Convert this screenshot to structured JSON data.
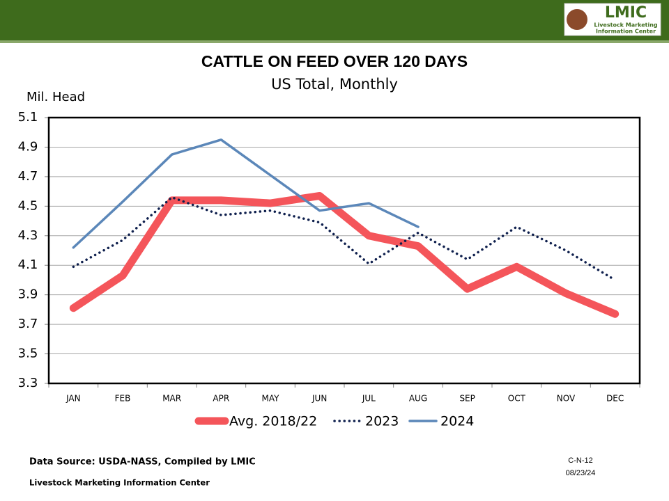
{
  "header": {
    "logo_title": "LMIC",
    "logo_line1": "Livestock Marketing",
    "logo_line2": "Information Center"
  },
  "chart_data": {
    "type": "line",
    "title": "CATTLE ON FEED OVER 120 DAYS",
    "subtitle": "US Total, Monthly",
    "y_label": "Mil. Head",
    "categories": [
      "JAN",
      "FEB",
      "MAR",
      "APR",
      "MAY",
      "JUN",
      "JUL",
      "AUG",
      "SEP",
      "OCT",
      "NOV",
      "DEC"
    ],
    "series": [
      {
        "name": "Avg. 2018/22",
        "color": "#f4555a",
        "style": "solid",
        "width": 11,
        "values": [
          3.81,
          4.03,
          4.54,
          4.54,
          4.52,
          4.57,
          4.3,
          4.23,
          3.94,
          4.09,
          3.91,
          3.77
        ]
      },
      {
        "name": "2023",
        "color": "#0e1f4d",
        "style": "dotted",
        "width": 3.5,
        "values": [
          4.09,
          4.27,
          4.56,
          4.44,
          4.47,
          4.39,
          4.11,
          4.32,
          4.14,
          4.36,
          4.2,
          4.0
        ]
      },
      {
        "name": "2024",
        "color": "#5b87b9",
        "style": "solid",
        "width": 3.5,
        "values": [
          4.22,
          4.53,
          4.85,
          4.95,
          4.71,
          4.47,
          4.52,
          4.36,
          null,
          null,
          null,
          null
        ]
      }
    ],
    "ylim": [
      3.3,
      5.1
    ],
    "yticks": [
      3.3,
      3.5,
      3.7,
      3.9,
      4.1,
      4.3,
      4.5,
      4.7,
      4.9,
      5.1
    ],
    "grid": true,
    "legend": "bottom"
  },
  "footer": {
    "source": "Data Source:  USDA-NASS, Compiled by LMIC",
    "org": "Livestock Marketing Information Center",
    "code": "C-N-12",
    "date": "08/23/24"
  }
}
